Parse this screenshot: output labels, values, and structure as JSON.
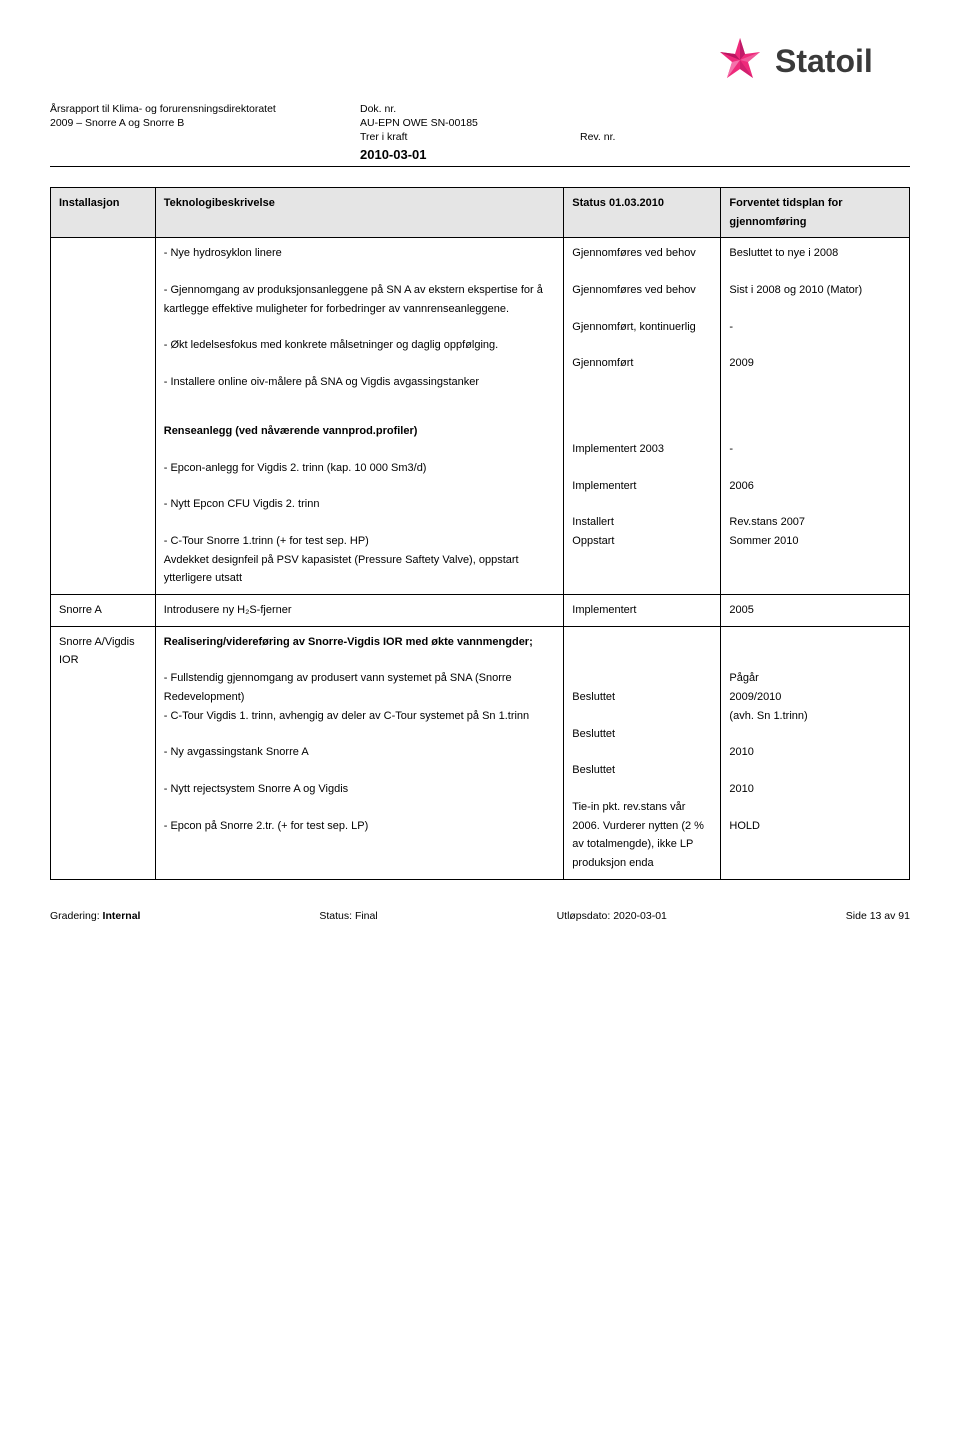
{
  "logo": {
    "name": "Statoil",
    "star_color": "#ee2a7b",
    "text_color": "#3a3a3a"
  },
  "header": {
    "r1c1": "Årsrapport til Klima- og forurensningsdirektoratet",
    "r1c2": "Dok. nr.",
    "r1c3": "",
    "r2c1": "2009 – Snorre A og Snorre B",
    "r2c2": "AU-EPN OWE SN-00185",
    "r2c3": "",
    "r3c1": "",
    "r3c2": "Trer i kraft",
    "r3c3": "Rev. nr.",
    "date": "2010-03-01"
  },
  "table_headers": {
    "c0": "Installasjon",
    "c1": "Teknologibeskrivelse",
    "c2": "Status 01.03.2010",
    "c3": "Forventet tidsplan for gjennomføring"
  },
  "rows": [
    {
      "c0": "",
      "c1": [
        {
          "text": "- Nye hydrosyklon linere"
        },
        {
          "text": "- Gjennomgang av produksjonsanleggene på SN A av ekstern ekspertise for å kartlegge effektive muligheter for forbedringer av vannrenseanleggene."
        },
        {
          "text": " - Økt ledelsesfokus med konkrete målsetninger og daglig oppfølging."
        },
        {
          "text": "- Installere online oiv-målere på SNA og Vigdis avgassingstanker"
        },
        {
          "text": "Renseanlegg (ved nåværende vannprod.profiler)",
          "bold": true,
          "gap_before": true
        },
        {
          "text": "- Epcon-anlegg for Vigdis 2. trinn (kap. 10 000 Sm3/d)"
        },
        {
          "text": "- Nytt Epcon CFU Vigdis 2. trinn"
        },
        {
          "text": "- C-Tour Snorre 1.trinn (+ for test sep. HP)\nAvdekket designfeil på PSV kapasistet (Pressure Saftety Valve), oppstart ytterligere utsatt"
        }
      ],
      "c2": [
        {
          "text": "Gjennomføres ved behov"
        },
        {
          "text": "Gjennomføres ved behov"
        },
        {
          "text": "Gjennomført, kontinuerlig"
        },
        {
          "text": "Gjennomført"
        },
        {
          "text": "",
          "gap_before": true
        },
        {
          "text": "Implementert 2003"
        },
        {
          "text": "Implementert"
        },
        {
          "text": "Installert\nOppstart"
        }
      ],
      "c3": [
        {
          "text": "Besluttet to nye i 2008"
        },
        {
          "text": "Sist i 2008 og 2010 (Mator)"
        },
        {
          "text": "-"
        },
        {
          "text": "2009"
        },
        {
          "text": "",
          "gap_before": true
        },
        {
          "text": "-"
        },
        {
          "text": "2006"
        },
        {
          "text": "Rev.stans 2007\nSommer 2010"
        }
      ]
    },
    {
      "c0": "Snorre A",
      "c1": [
        {
          "text": " Introdusere ny H₂S-fjerner"
        }
      ],
      "c2": [
        {
          "text": "Implementert"
        }
      ],
      "c3": [
        {
          "text": "2005"
        }
      ]
    },
    {
      "c0": "Snorre A/Vigdis IOR",
      "c1": [
        {
          "text": "Realisering/videreføring av Snorre-Vigdis IOR med økte vannmengder;",
          "bold": true
        },
        {
          "text": "- Fullstendig gjennomgang av produsert vann systemet på SNA (Snorre Redevelopment)",
          "no_margin": true
        },
        {
          "text": "- C-Tour Vigdis 1. trinn, avhengig av deler av C-Tour systemet på Sn 1.trinn"
        },
        {
          "text": "- Ny avgassingstank Snorre A"
        },
        {
          "text": "- Nytt rejectsystem Snorre A og Vigdis"
        },
        {
          "text": "- Epcon på Snorre 2.tr. (+ for test sep. LP)"
        }
      ],
      "c2": [
        {
          "text": ""
        },
        {
          "text": "",
          "no_margin": true
        },
        {
          "text": "Besluttet"
        },
        {
          "text": "Besluttet"
        },
        {
          "text": "Besluttet"
        },
        {
          "text": "Tie-in pkt. rev.stans vår 2006. Vurderer nytten (2 % av totalmengde), ikke LP produksjon enda"
        }
      ],
      "c3": [
        {
          "text": ""
        },
        {
          "text": "Pågår",
          "no_margin": true
        },
        {
          "text": "2009/2010\n(avh. Sn 1.trinn)"
        },
        {
          "text": "2010"
        },
        {
          "text": "2010"
        },
        {
          "text": "HOLD"
        }
      ]
    }
  ],
  "footer": {
    "left_label": "Gradering:",
    "left_value": "Internal",
    "mid_label": "Status:",
    "mid_value": "Final",
    "mid2_label": "Utløpsdato:",
    "mid2_value": "2020-03-01",
    "right_label": "Side",
    "right_value": "13 av 91"
  }
}
